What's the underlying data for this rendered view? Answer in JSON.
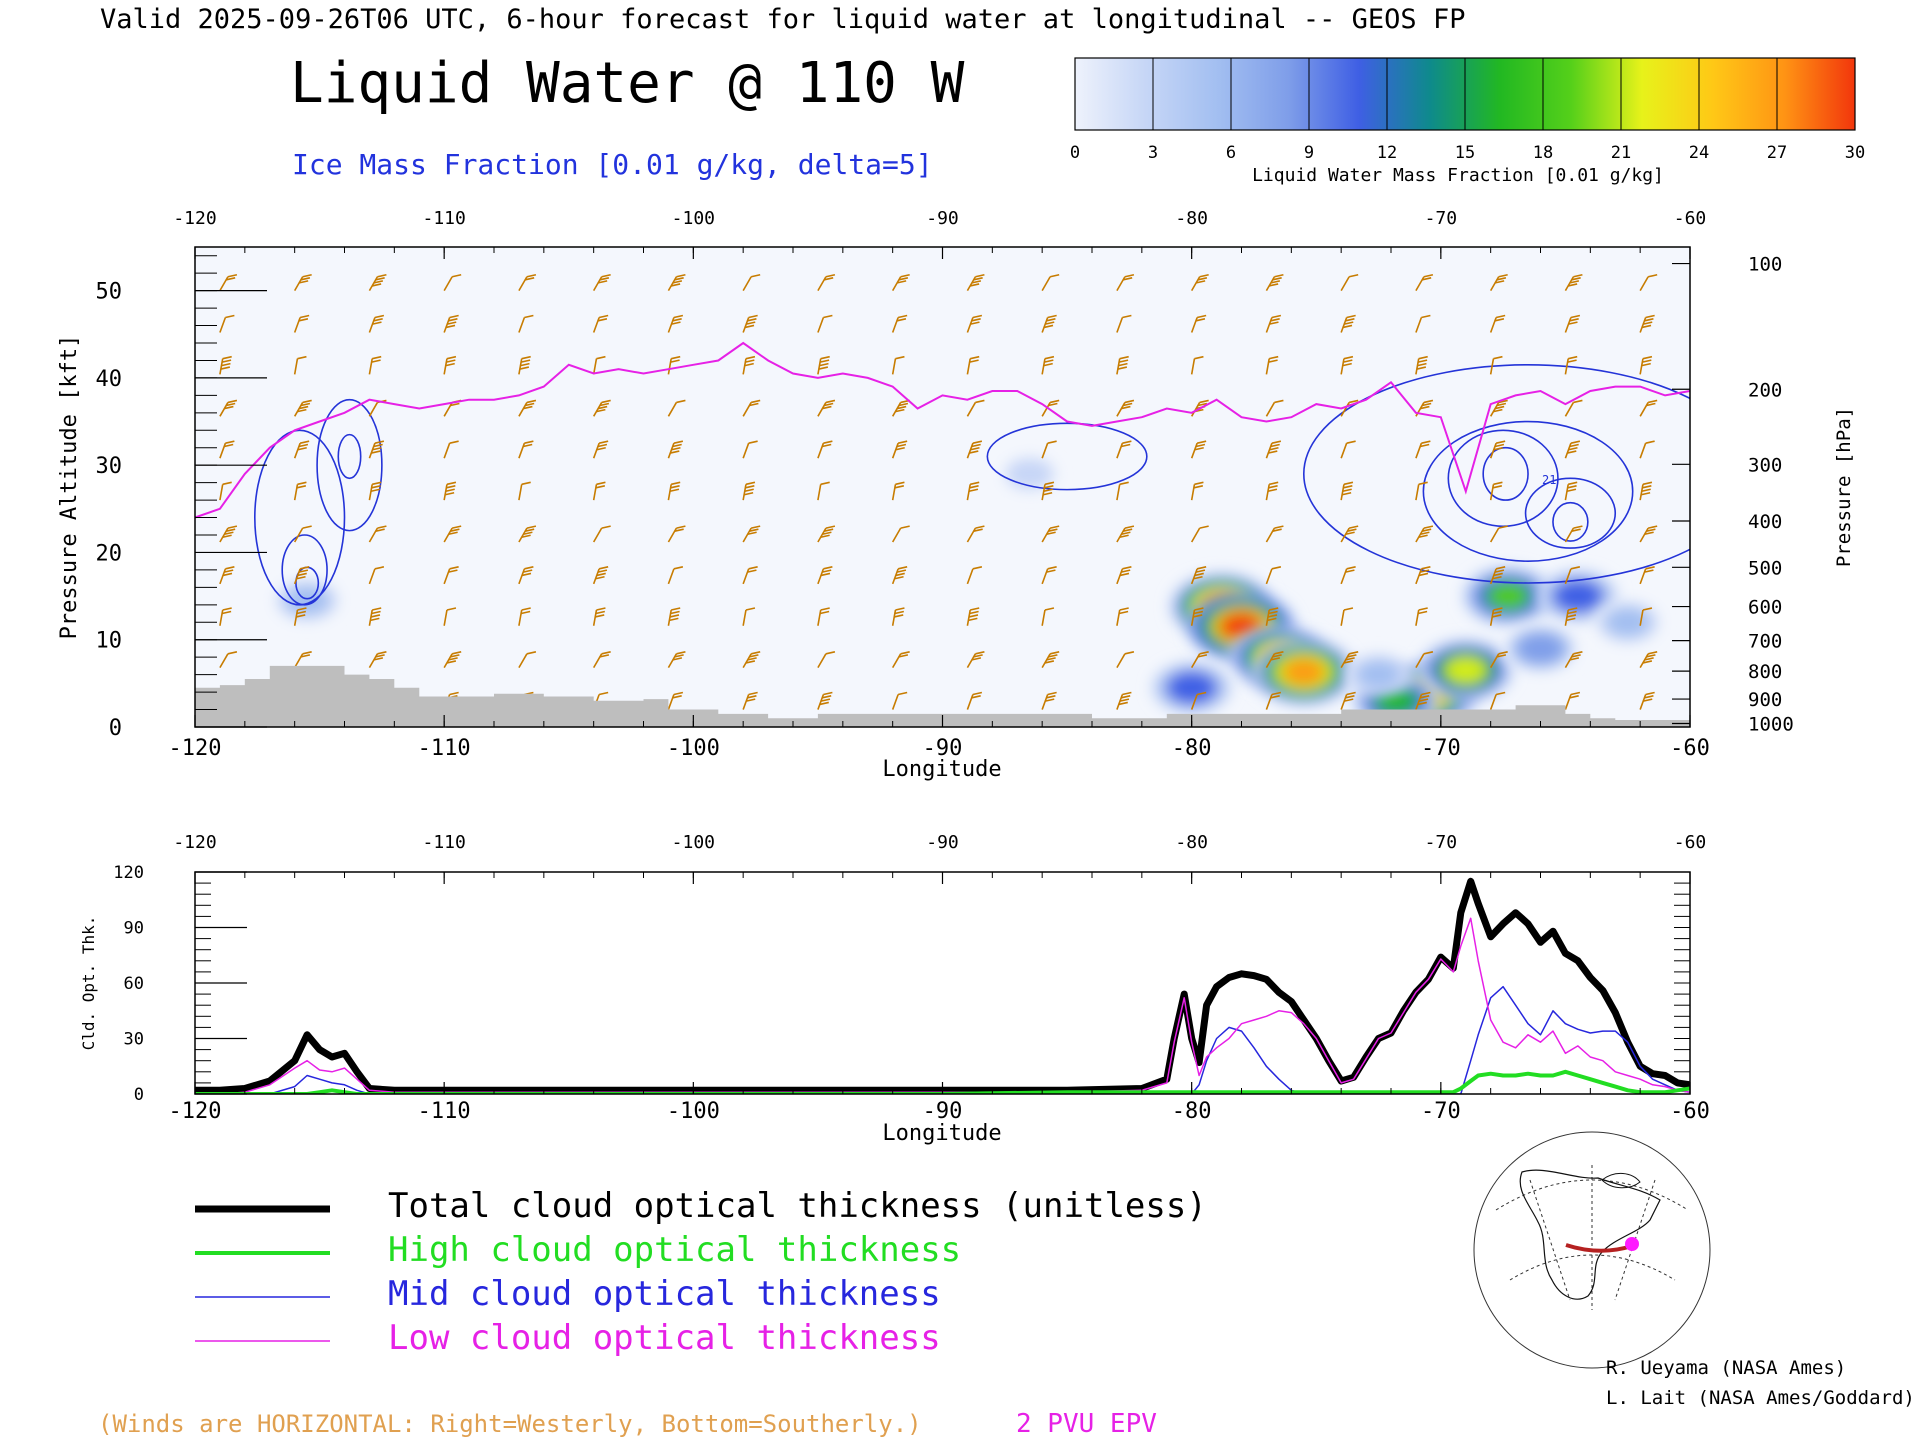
{
  "header": {
    "valid_line": "Valid 2025-09-26T06 UTC, 6-hour forecast for liquid water at longitudinal -- GEOS FP",
    "title": "Liquid Water @ 110 W",
    "subtitle": "Ice Mass Fraction [0.01 g/kg, delta=5]"
  },
  "colorbar": {
    "label": "Liquid Water Mass Fraction [0.01 g/kg]",
    "ticks": [
      "0",
      "3",
      "6",
      "9",
      "12",
      "15",
      "18",
      "21",
      "24",
      "27",
      "30"
    ],
    "colors": [
      "#eef2fc",
      "#c6d6f6",
      "#a3bff1",
      "#7f9ee9",
      "#3f5fe4",
      "#0e8a8c",
      "#22b822",
      "#55d01a",
      "#e7f21a",
      "#ffc816",
      "#ff9414",
      "#f2360c"
    ]
  },
  "colors": {
    "ice_contour": "#2434d8",
    "epv": "#e621e6",
    "barb": "#c77c00",
    "terrain": "#bebebe",
    "total": "#000000",
    "high": "#22dd22",
    "mid": "#2727dd",
    "low": "#e621e6"
  },
  "chart_data": [
    {
      "type": "cross-section",
      "title": "Liquid Water @ 110 W",
      "xlabel": "Longitude",
      "ylabel": "Pressure Altitude [kft]",
      "y2label": "Pressure [hPa]",
      "xlim": [
        -120,
        -60
      ],
      "ylim": [
        0,
        55
      ],
      "xticks": [
        "-120",
        "-110",
        "-100",
        "-90",
        "-80",
        "-70",
        "-60"
      ],
      "yticks": [
        "0",
        "10",
        "20",
        "30",
        "40",
        "50"
      ],
      "pressure_ticks": [
        {
          "label": "100",
          "kft": 53.1
        },
        {
          "label": "200",
          "kft": 38.7
        },
        {
          "label": "300",
          "kft": 30.1
        },
        {
          "label": "400",
          "kft": 23.6
        },
        {
          "label": "500",
          "kft": 18.3
        },
        {
          "label": "600",
          "kft": 13.8
        },
        {
          "label": "700",
          "kft": 9.9
        },
        {
          "label": "800",
          "kft": 6.4
        },
        {
          "label": "900",
          "kft": 3.2
        },
        {
          "label": "1000",
          "kft": 0.4
        }
      ],
      "epv_2pvu_line": {
        "x": [
          -120,
          -119,
          -118,
          -117,
          -116,
          -115,
          -114,
          -113,
          -112,
          -111,
          -110,
          -109,
          -108,
          -107,
          -106,
          -105,
          -104,
          -103,
          -102,
          -101,
          -100,
          -99,
          -98,
          -97,
          -96,
          -95,
          -94,
          -93,
          -92,
          -91,
          -90,
          -89,
          -88,
          -87,
          -86,
          -85,
          -84,
          -83,
          -82,
          -81,
          -80,
          -79,
          -78,
          -77,
          -76,
          -75,
          -74,
          -73,
          -72,
          -71,
          -70,
          -69,
          -68,
          -67,
          -66,
          -65,
          -64,
          -63,
          -62,
          -61,
          -60
        ],
        "kft": [
          24,
          25,
          29,
          32,
          34,
          35,
          36,
          37.5,
          37,
          36.5,
          37,
          37.5,
          37.5,
          38,
          39,
          41.5,
          40.5,
          41,
          40.5,
          41,
          41.5,
          42,
          44,
          42,
          40.5,
          40,
          40.5,
          40,
          39,
          36.5,
          38,
          37.5,
          38.5,
          38.5,
          37,
          35,
          34.5,
          35,
          35.5,
          36.5,
          36,
          37.5,
          35.5,
          35,
          35.5,
          37,
          36.5,
          37.5,
          39.5,
          36,
          35.5,
          27,
          37,
          38,
          38.5,
          37,
          38.5,
          39,
          39,
          38,
          38.5
        ]
      },
      "terrain": {
        "x": [
          -120,
          -119,
          -118,
          -117,
          -116,
          -115,
          -114,
          -113,
          -112,
          -111,
          -110,
          -109,
          -108,
          -107,
          -106,
          -105,
          -104,
          -103,
          -102,
          -101,
          -100,
          -99,
          -98,
          -97,
          -96,
          -95,
          -94,
          -93,
          -92,
          -91,
          -90,
          -89,
          -88,
          -87,
          -86,
          -85,
          -84,
          -83,
          -82,
          -81,
          -80,
          -79,
          -78,
          -77,
          -76,
          -75,
          -74,
          -73,
          -72,
          -71,
          -70,
          -69,
          -68,
          -67,
          -66,
          -65,
          -64,
          -63,
          -62,
          -61,
          -60
        ],
        "kft": [
          4.5,
          4.8,
          5.5,
          7,
          7,
          7,
          6,
          5.5,
          4.5,
          3.5,
          3.5,
          3.5,
          3.8,
          3.8,
          3.5,
          3.5,
          3,
          3,
          3.2,
          2,
          2,
          1.5,
          1.5,
          1,
          1,
          1.5,
          1.5,
          1.5,
          1.5,
          1.5,
          1.5,
          1.5,
          1.5,
          1.5,
          1.5,
          1.5,
          1,
          1,
          1,
          1.5,
          1.5,
          1.5,
          1.5,
          1.5,
          1.5,
          1.5,
          2,
          2,
          2,
          2,
          2,
          2,
          2,
          2.5,
          2.5,
          1.5,
          1,
          0.8,
          0.8,
          0.8,
          0.8
        ]
      },
      "liquid_water_blobs": [
        {
          "lon": -78.8,
          "kft": 13.8,
          "peak": 27
        },
        {
          "lon": -78.0,
          "kft": 11.5,
          "peak": 30
        },
        {
          "lon": -76.5,
          "kft": 8.0,
          "peak": 24
        },
        {
          "lon": -75.5,
          "kft": 6.3,
          "peak": 27
        },
        {
          "lon": -80.0,
          "kft": 4.5,
          "peak": 12
        },
        {
          "lon": -70.5,
          "kft": 3.8,
          "peak": 24
        },
        {
          "lon": -69.0,
          "kft": 6.5,
          "peak": 21
        },
        {
          "lon": -71.8,
          "kft": 3.0,
          "peak": 15
        },
        {
          "lon": -67.3,
          "kft": 15.0,
          "peak": 18
        },
        {
          "lon": -64.5,
          "kft": 15.0,
          "peak": 12
        },
        {
          "lon": -66.0,
          "kft": 9.0,
          "peak": 9
        },
        {
          "lon": -72.5,
          "kft": 6.0,
          "peak": 6
        },
        {
          "lon": -115.5,
          "kft": 14.5,
          "peak": 6
        },
        {
          "lon": -86.5,
          "kft": 29.0,
          "peak": 3
        },
        {
          "lon": -62.5,
          "kft": 12.0,
          "peak": 6
        }
      ],
      "ice_mass_contours": [
        {
          "lon": -115.8,
          "kft": 24,
          "rx": 1.8,
          "ry": 10
        },
        {
          "lon": -115.6,
          "kft": 18,
          "rx": 0.9,
          "ry": 4
        },
        {
          "lon": -115.5,
          "kft": 16.5,
          "rx": 0.45,
          "ry": 1.8
        },
        {
          "lon": -113.8,
          "kft": 30,
          "rx": 1.3,
          "ry": 7.5
        },
        {
          "lon": -113.8,
          "kft": 31,
          "rx": 0.45,
          "ry": 2.5
        },
        {
          "lon": -85.0,
          "kft": 31,
          "rx": 3.2,
          "ry": 3.8
        },
        {
          "lon": -66.5,
          "kft": 29,
          "rx": 9,
          "ry": 12.5
        },
        {
          "lon": -66.5,
          "kft": 27,
          "rx": 4.2,
          "ry": 8
        },
        {
          "lon": -67.5,
          "kft": 28.5,
          "rx": 2.2,
          "ry": 5.5
        },
        {
          "lon": -64.8,
          "kft": 24.5,
          "rx": 1.8,
          "ry": 4
        },
        {
          "lon": -67.4,
          "kft": 29,
          "rx": 0.9,
          "ry": 3
        },
        {
          "lon": -64.8,
          "kft": 23.5,
          "rx": 0.7,
          "ry": 2.2
        }
      ],
      "contour_label": "21",
      "epv_label": "2 PVU EPV",
      "wind_note": "(Winds are HORIZONTAL: Right=Westerly, Bottom=Southerly.)"
    },
    {
      "type": "line",
      "xlabel": "Longitude",
      "ylabel": "Cld. Opt. Thk.",
      "xlim": [
        -120,
        -60
      ],
      "ylim": [
        0,
        120
      ],
      "xticks": [
        "-120",
        "-110",
        "-100",
        "-90",
        "-80",
        "-70",
        "-60"
      ],
      "yticks": [
        "0",
        "30",
        "60",
        "90",
        "120"
      ],
      "x": [
        -120,
        -119,
        -118,
        -117,
        -116,
        -115.5,
        -115,
        -114.5,
        -114,
        -113.5,
        -113,
        -112,
        -110,
        -105,
        -100,
        -95,
        -90,
        -85,
        -82,
        -81,
        -80.7,
        -80.3,
        -80,
        -79.7,
        -79.4,
        -79,
        -78.5,
        -78,
        -77.5,
        -77,
        -76.5,
        -76,
        -75.5,
        -75,
        -74.5,
        -74,
        -73.5,
        -73,
        -72.5,
        -72,
        -71.5,
        -71,
        -70.5,
        -70,
        -69.5,
        -69.2,
        -68.8,
        -68.5,
        -68,
        -67.5,
        -67,
        -66.5,
        -66,
        -65.5,
        -65,
        -64.5,
        -64,
        -63.5,
        -63,
        -62.5,
        -62,
        -61.5,
        -61,
        -60.5,
        -60
      ],
      "series": [
        {
          "name": "Total cloud optical thickness (unitless)",
          "values": [
            2,
            2,
            3,
            7,
            18,
            32,
            24,
            20,
            22,
            12,
            3,
            2,
            2,
            2,
            2,
            2,
            2,
            2,
            3,
            8,
            30,
            54,
            30,
            17,
            48,
            58,
            63,
            65,
            64,
            62,
            55,
            50,
            40,
            30,
            18,
            7,
            9,
            20,
            30,
            33,
            45,
            55,
            62,
            74,
            68,
            98,
            115,
            103,
            85,
            92,
            98,
            92,
            82,
            88,
            76,
            72,
            63,
            56,
            44,
            28,
            15,
            11,
            10,
            6,
            5
          ]
        },
        {
          "name": "High cloud optical thickness",
          "values": [
            0,
            0,
            0,
            0,
            0,
            0,
            1,
            2,
            1,
            0,
            0,
            0,
            0,
            0,
            0,
            0,
            0,
            1,
            1,
            1,
            1,
            1,
            1,
            1,
            1,
            1,
            1,
            1,
            1,
            1,
            1,
            1,
            1,
            1,
            1,
            1,
            1,
            1,
            1,
            1,
            1,
            1,
            1,
            1,
            1,
            3,
            7,
            10,
            11,
            10,
            10,
            11,
            10,
            10,
            12,
            10,
            8,
            6,
            4,
            2,
            1,
            1,
            1,
            2,
            3
          ]
        },
        {
          "name": "Mid cloud optical thickness",
          "values": [
            0,
            0,
            0,
            0,
            4,
            10,
            8,
            6,
            5,
            2,
            0,
            0,
            0,
            0,
            0,
            0,
            0,
            0,
            0,
            0,
            0,
            0,
            0,
            5,
            18,
            30,
            36,
            34,
            25,
            15,
            8,
            2,
            0,
            0,
            0,
            0,
            0,
            0,
            0,
            0,
            0,
            0,
            0,
            0,
            0,
            0,
            18,
            32,
            52,
            58,
            48,
            38,
            32,
            45,
            38,
            35,
            33,
            34,
            34,
            28,
            15,
            8,
            5,
            2,
            1
          ]
        },
        {
          "name": "Low cloud optical thickness",
          "values": [
            0,
            0,
            1,
            5,
            14,
            18,
            13,
            12,
            14,
            8,
            2,
            1,
            1,
            1,
            1,
            1,
            1,
            1,
            2,
            6,
            28,
            52,
            28,
            10,
            20,
            25,
            30,
            38,
            40,
            42,
            45,
            44,
            38,
            30,
            18,
            6,
            8,
            19,
            30,
            33,
            44,
            55,
            62,
            73,
            66,
            80,
            95,
            72,
            40,
            28,
            25,
            32,
            28,
            34,
            22,
            26,
            20,
            18,
            12,
            10,
            8,
            5,
            4,
            2,
            1
          ]
        }
      ]
    }
  ],
  "legend": [
    {
      "label": "Total cloud optical thickness (unitless)",
      "color": "#000000",
      "width": 7
    },
    {
      "label": "High cloud optical thickness",
      "color": "#22dd22",
      "width": 4
    },
    {
      "label": "Mid cloud optical thickness",
      "color": "#2727dd",
      "width": 1.5
    },
    {
      "label": "Low cloud optical thickness",
      "color": "#e621e6",
      "width": 1.5
    }
  ],
  "credits": [
    "R. Ueyama (NASA Ames)",
    "L. Lait (NASA Ames/Goddard)"
  ]
}
